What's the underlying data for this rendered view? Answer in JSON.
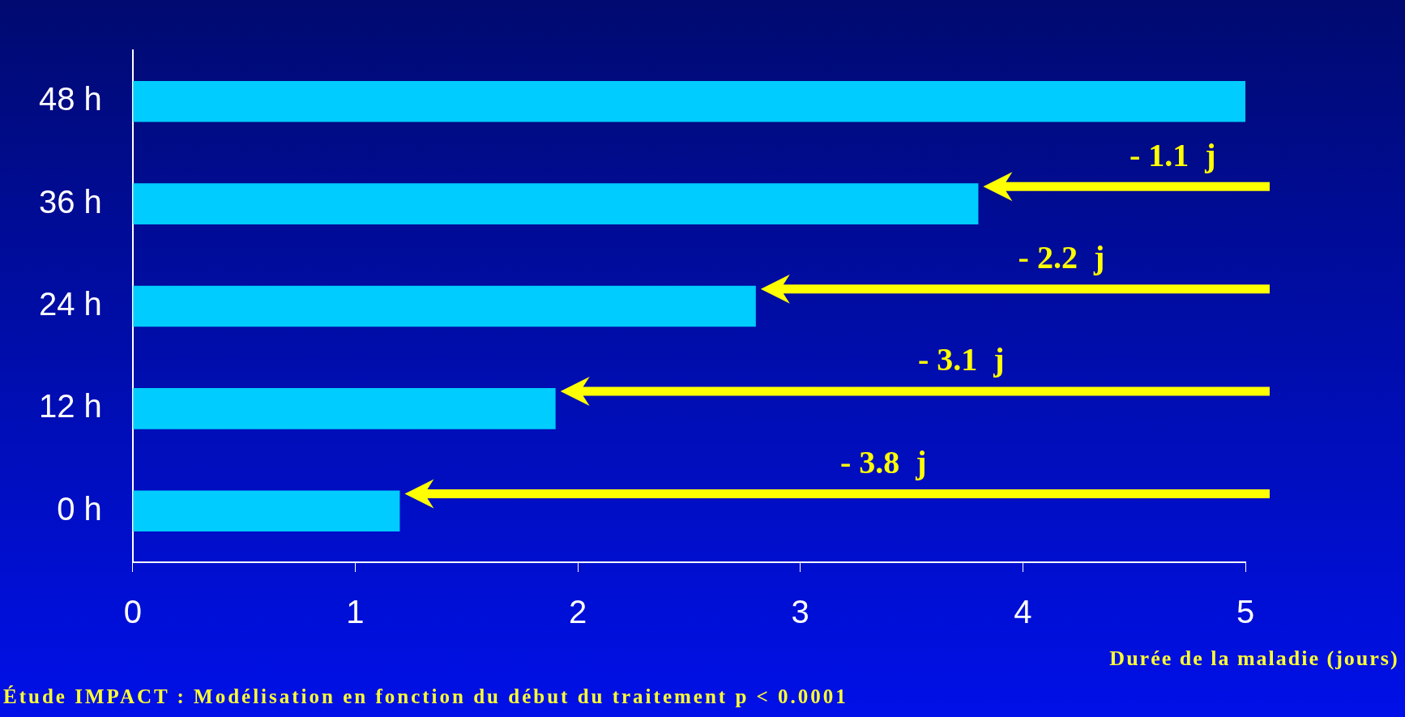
{
  "chart_data": {
    "type": "bar",
    "orientation": "horizontal",
    "categories": [
      "48 h",
      "36 h",
      "24 h",
      "12 h",
      "0 h"
    ],
    "values": [
      5.0,
      3.8,
      2.8,
      1.9,
      1.2
    ],
    "color": "#00ccff",
    "xlim": [
      0,
      5
    ],
    "xticks": [
      0,
      1,
      2,
      3,
      4,
      5
    ],
    "xlabel": "Durée de la maladie (jours)",
    "grid": false,
    "legend": false,
    "annotations": [
      "- 1.1  j",
      "- 2.2  j",
      "- 3.1  j",
      "- 3.8  j",
      "Étude IMPACT : Modélisation en fonction du début du traitement p < 0.0001"
    ]
  }
}
